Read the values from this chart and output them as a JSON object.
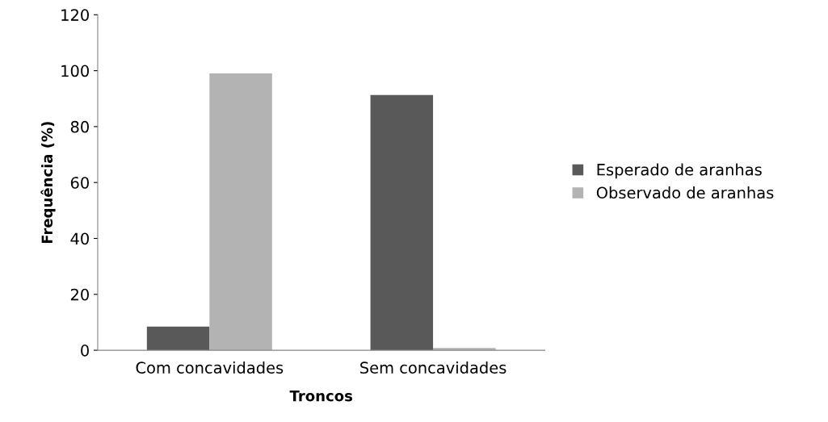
{
  "chart_data": {
    "type": "bar",
    "xlabel": "Troncos",
    "ylabel": "Frequência (%)",
    "categories": [
      "Com concavidades",
      "Sem concavidades"
    ],
    "series": [
      {
        "name": "Esperado de aranhas",
        "color": "#595959",
        "values": [
          8.5,
          91.3
        ]
      },
      {
        "name": "Observado de aranhas",
        "color": "#b3b3b3",
        "values": [
          99,
          0.8
        ]
      }
    ],
    "ylim": [
      0,
      120
    ],
    "yticks": [
      0,
      20,
      40,
      60,
      80,
      100,
      120
    ],
    "grid": false,
    "legend": "right"
  }
}
